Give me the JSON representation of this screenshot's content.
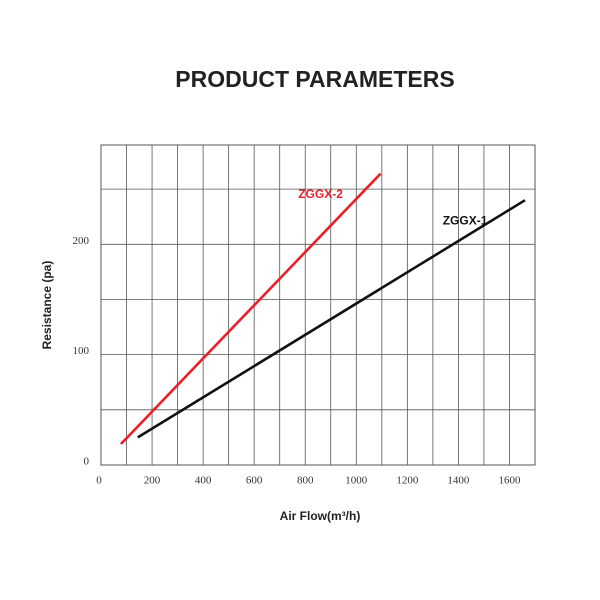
{
  "chart_data": {
    "type": "line",
    "title": "PRODUCT PARAMETERS",
    "x_label": "Air Flow(m³/h)",
    "y_label": "Resistance (pa)",
    "series": [
      {
        "name": "ZGGX-2",
        "color": "#e8202a",
        "x": [
          78,
          1095
        ],
        "values": [
          19,
          264
        ]
      },
      {
        "name": "ZGGX-1",
        "color": "#111111",
        "x": [
          144,
          1661
        ],
        "values": [
          25,
          240
        ]
      }
    ],
    "xlim": [
      0,
      1700
    ],
    "xticks": [
      0,
      200,
      400,
      600,
      800,
      1000,
      1200,
      1400,
      1600
    ],
    "x_minor_grid": [
      100,
      300,
      500,
      700,
      900,
      1100,
      1300,
      1500,
      1700
    ],
    "ylim": [
      0,
      290
    ],
    "yticks": [
      0,
      100,
      200
    ],
    "y_minor_grid": [
      50,
      150,
      250
    ],
    "grid": true
  }
}
